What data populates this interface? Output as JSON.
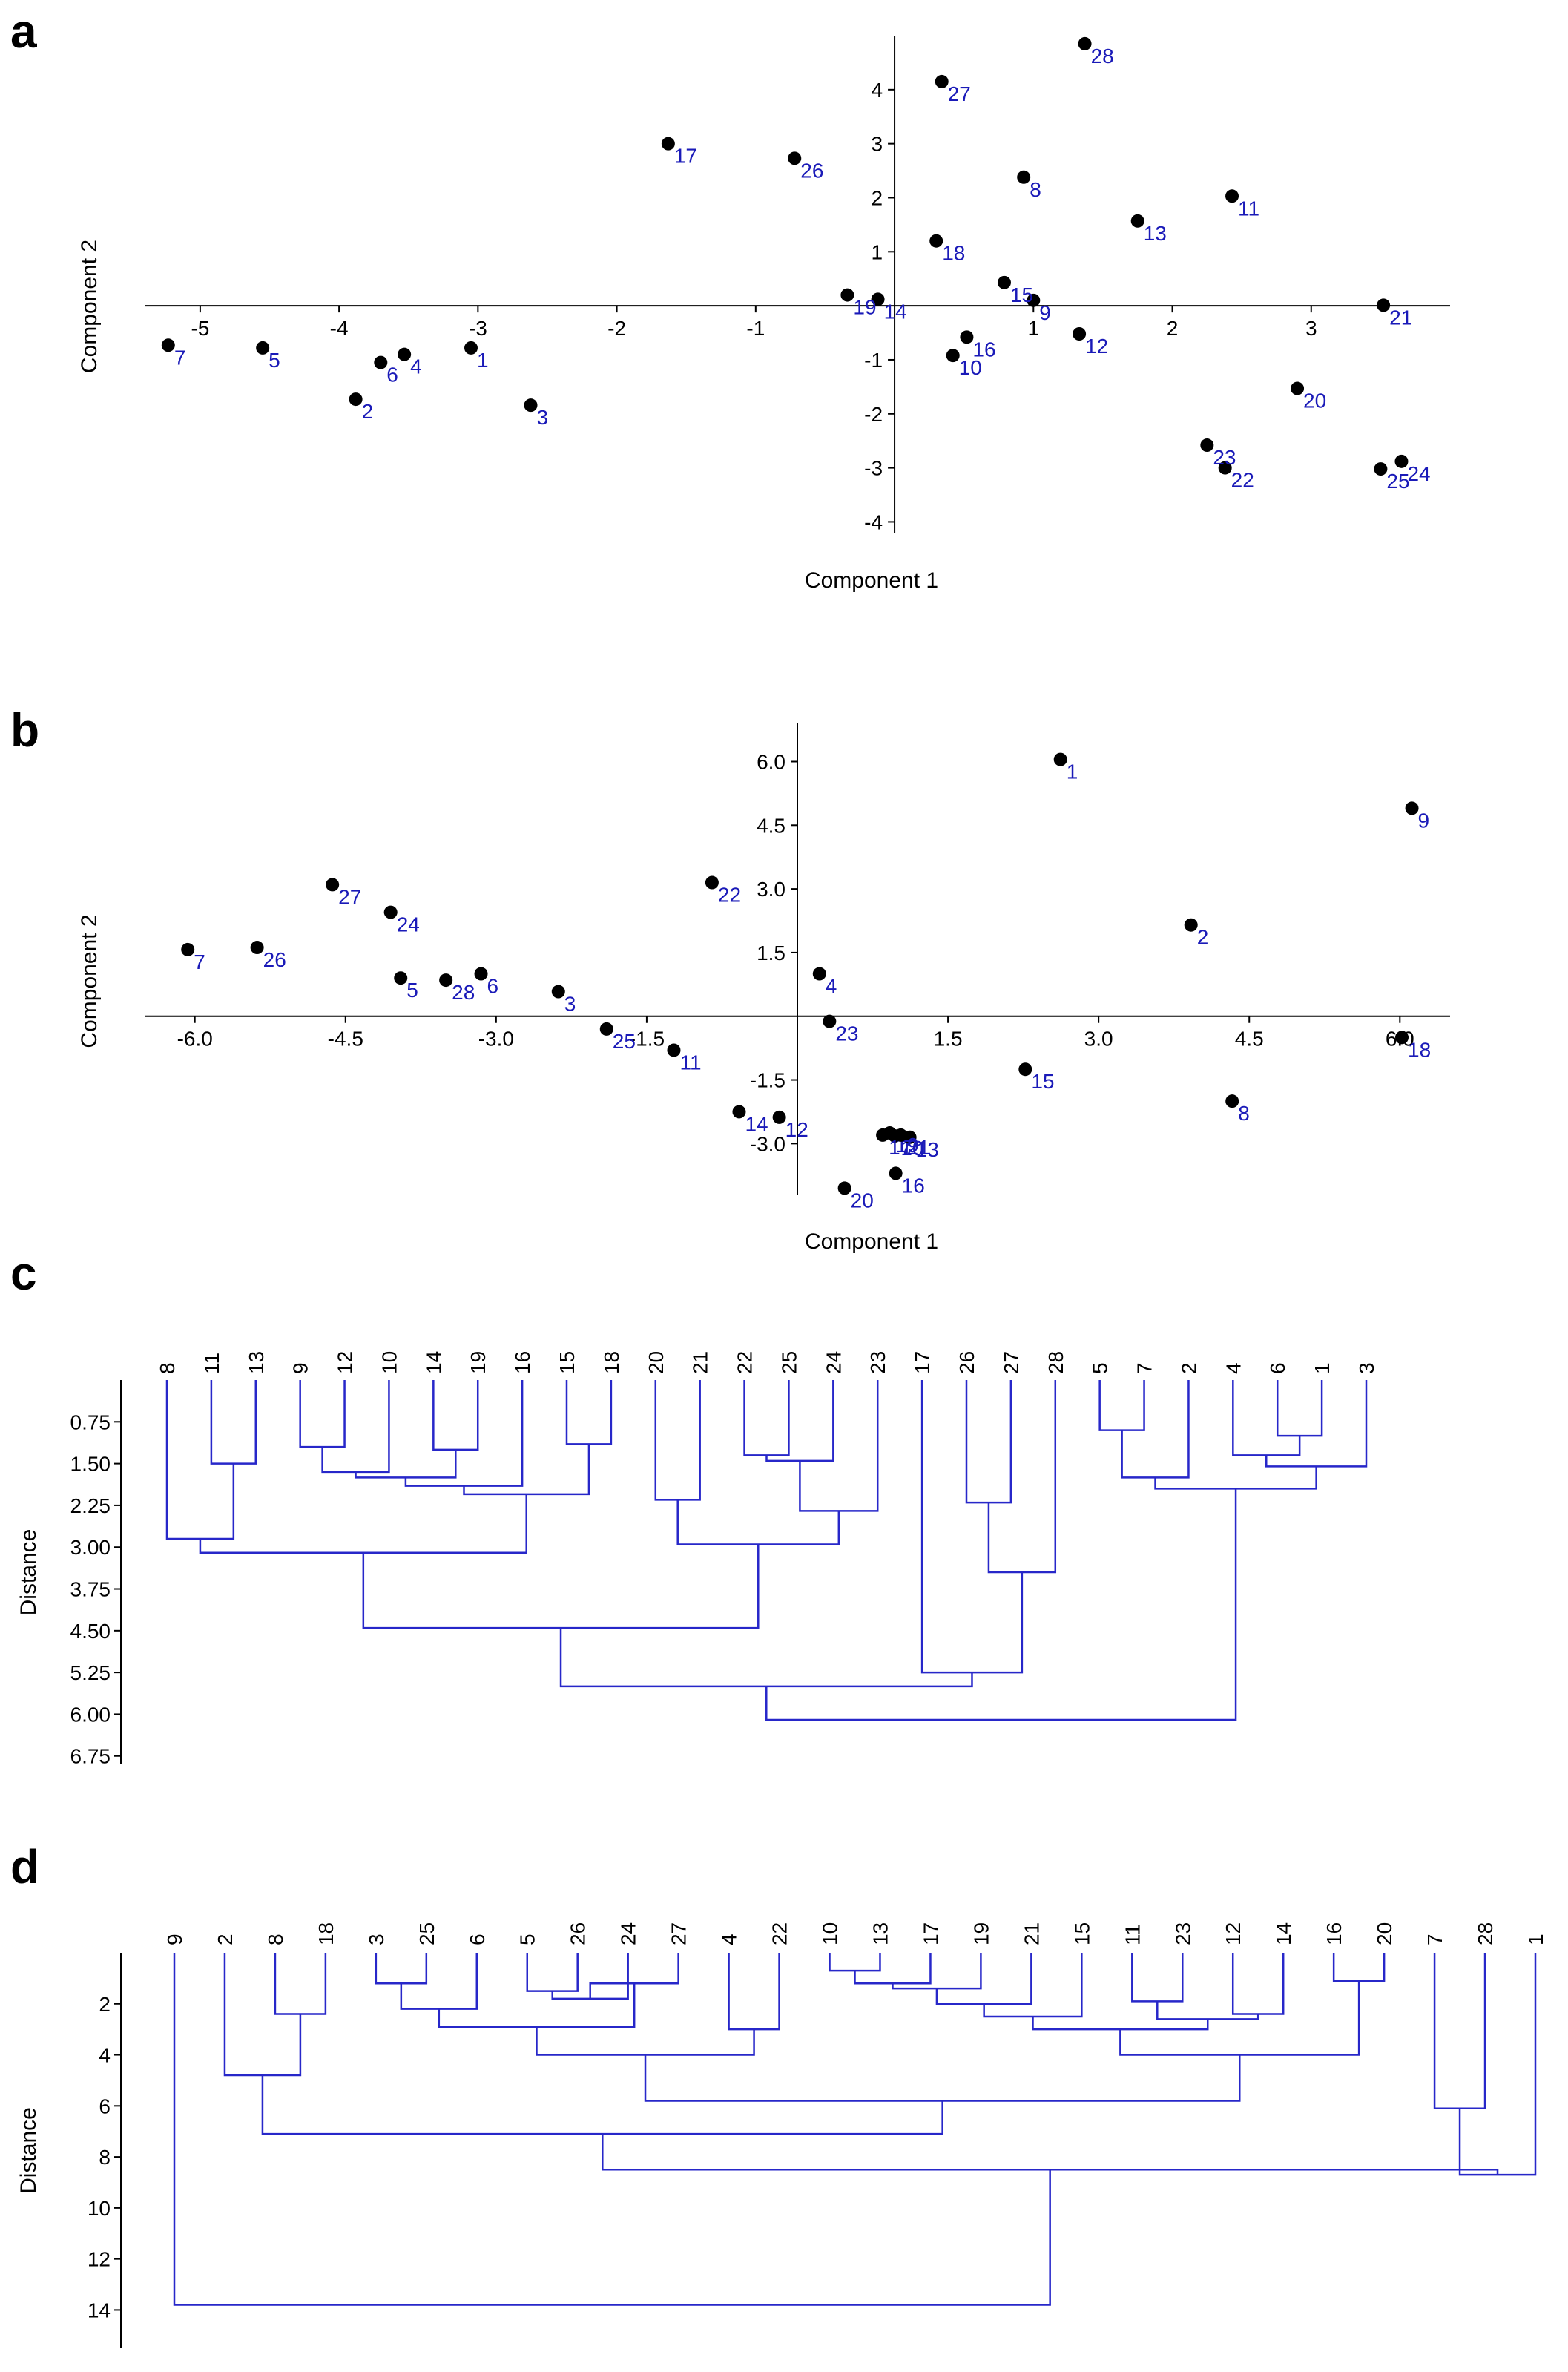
{
  "chart_data": [
    {
      "id": "a",
      "panel_label": "a",
      "type": "scatter",
      "xlabel": "Component 1",
      "ylabel": "Component 2",
      "xlim": [
        -5.4,
        4.0
      ],
      "ylim": [
        -4.2,
        5.0
      ],
      "xticks": [
        -5,
        -4,
        -3,
        -2,
        -1,
        1,
        2,
        3
      ],
      "yticks": [
        -4,
        -3,
        -2,
        -1,
        1,
        2,
        3,
        4
      ],
      "tick_decimals": 0,
      "points": [
        {
          "label": "1",
          "x": -3.05,
          "y": -0.78
        },
        {
          "label": "2",
          "x": -3.88,
          "y": -1.73
        },
        {
          "label": "3",
          "x": -2.62,
          "y": -1.84
        },
        {
          "label": "4",
          "x": -3.53,
          "y": -0.9
        },
        {
          "label": "5",
          "x": -4.55,
          "y": -0.78
        },
        {
          "label": "6",
          "x": -3.7,
          "y": -1.05
        },
        {
          "label": "7",
          "x": -5.23,
          "y": -0.73
        },
        {
          "label": "8",
          "x": 0.93,
          "y": 2.38
        },
        {
          "label": "9",
          "x": 1.0,
          "y": 0.1
        },
        {
          "label": "10",
          "x": 0.42,
          "y": -0.92
        },
        {
          "label": "11",
          "x": 2.43,
          "y": 2.03
        },
        {
          "label": "12",
          "x": 1.33,
          "y": -0.52
        },
        {
          "label": "13",
          "x": 1.75,
          "y": 1.57
        },
        {
          "label": "14",
          "x": -0.12,
          "y": 0.12
        },
        {
          "label": "15",
          "x": 0.79,
          "y": 0.43
        },
        {
          "label": "16",
          "x": 0.52,
          "y": -0.58
        },
        {
          "label": "17",
          "x": -1.63,
          "y": 3.0
        },
        {
          "label": "18",
          "x": 0.3,
          "y": 1.2
        },
        {
          "label": "19",
          "x": -0.34,
          "y": 0.2
        },
        {
          "label": "20",
          "x": 2.9,
          "y": -1.53
        },
        {
          "label": "21",
          "x": 3.52,
          "y": 0.01
        },
        {
          "label": "22",
          "x": 2.38,
          "y": -3.0
        },
        {
          "label": "23",
          "x": 2.25,
          "y": -2.58
        },
        {
          "label": "24",
          "x": 3.65,
          "y": -2.88
        },
        {
          "label": "25",
          "x": 3.5,
          "y": -3.02
        },
        {
          "label": "26",
          "x": -0.72,
          "y": 2.73
        },
        {
          "label": "27",
          "x": 0.34,
          "y": 4.15
        },
        {
          "label": "28",
          "x": 1.37,
          "y": 4.85
        }
      ]
    },
    {
      "id": "b",
      "panel_label": "b",
      "type": "scatter",
      "xlabel": "Component 1",
      "ylabel": "Component 2",
      "xlim": [
        -6.5,
        6.5
      ],
      "ylim": [
        -4.2,
        6.9
      ],
      "xticks": [
        -6.0,
        -4.5,
        -3.0,
        -1.5,
        1.5,
        3.0,
        4.5,
        6.0
      ],
      "yticks": [
        -3.0,
        -1.5,
        1.5,
        3.0,
        4.5,
        6.0
      ],
      "tick_decimals": 1,
      "points": [
        {
          "label": "1",
          "x": 2.62,
          "y": 6.05
        },
        {
          "label": "2",
          "x": 3.92,
          "y": 2.15
        },
        {
          "label": "3",
          "x": -2.38,
          "y": 0.58
        },
        {
          "label": "4",
          "x": 0.22,
          "y": 1.0
        },
        {
          "label": "5",
          "x": -3.95,
          "y": 0.9
        },
        {
          "label": "6",
          "x": -3.15,
          "y": 1.0
        },
        {
          "label": "7",
          "x": -6.07,
          "y": 1.57
        },
        {
          "label": "8",
          "x": 4.33,
          "y": -2.0
        },
        {
          "label": "9",
          "x": 6.12,
          "y": 4.9
        },
        {
          "label": "10",
          "x": 0.97,
          "y": -2.82
        },
        {
          "label": "11",
          "x": -1.23,
          "y": -0.8
        },
        {
          "label": "12",
          "x": -0.18,
          "y": -2.38
        },
        {
          "label": "13",
          "x": 1.12,
          "y": -2.85
        },
        {
          "label": "14",
          "x": -0.58,
          "y": -2.25
        },
        {
          "label": "15",
          "x": 2.27,
          "y": -1.25
        },
        {
          "label": "16",
          "x": 0.98,
          "y": -3.7
        },
        {
          "label": "17",
          "x": 0.85,
          "y": -2.8
        },
        {
          "label": "18",
          "x": 6.02,
          "y": -0.5
        },
        {
          "label": "19",
          "x": 0.92,
          "y": -2.75
        },
        {
          "label": "20",
          "x": 0.47,
          "y": -4.05
        },
        {
          "label": "21",
          "x": 1.03,
          "y": -2.8
        },
        {
          "label": "22",
          "x": -0.85,
          "y": 3.15
        },
        {
          "label": "23",
          "x": 0.32,
          "y": -0.12
        },
        {
          "label": "24",
          "x": -4.05,
          "y": 2.45
        },
        {
          "label": "25",
          "x": -1.9,
          "y": -0.3
        },
        {
          "label": "26",
          "x": -5.38,
          "y": 1.62
        },
        {
          "label": "27",
          "x": -4.63,
          "y": 3.1
        },
        {
          "label": "28",
          "x": -3.5,
          "y": 0.85
        }
      ]
    },
    {
      "id": "c",
      "panel_label": "c",
      "type": "dendrogram",
      "ylabel": "Distance",
      "ylim": [
        0.0,
        6.9
      ],
      "yticks": [
        0.75,
        1.5,
        2.25,
        3.0,
        3.75,
        4.5,
        5.25,
        6.0,
        6.75
      ],
      "tick_decimals": 2,
      "leaves": [
        "8",
        "11",
        "13",
        "9",
        "12",
        "10",
        "14",
        "19",
        "16",
        "15",
        "18",
        "20",
        "21",
        "22",
        "25",
        "24",
        "23",
        "17",
        "26",
        "27",
        "28",
        "5",
        "7",
        "2",
        "4",
        "6",
        "1",
        "3"
      ],
      "merges": [
        {
          "a": "11",
          "b": "13",
          "h": 1.5
        },
        {
          "a": "8",
          "b": 0,
          "h": 2.85
        },
        {
          "a": "9",
          "b": "12",
          "h": 1.2
        },
        {
          "a": 2,
          "b": "10",
          "h": 1.65
        },
        {
          "a": "14",
          "b": "19",
          "h": 1.25
        },
        {
          "a": 3,
          "b": 4,
          "h": 1.75
        },
        {
          "a": 5,
          "b": "16",
          "h": 1.9
        },
        {
          "a": "15",
          "b": "18",
          "h": 1.15
        },
        {
          "a": 6,
          "b": 7,
          "h": 2.05
        },
        {
          "a": 1,
          "b": 8,
          "h": 3.1
        },
        {
          "a": "20",
          "b": "21",
          "h": 2.15
        },
        {
          "a": "22",
          "b": "25",
          "h": 1.35
        },
        {
          "a": 11,
          "b": "24",
          "h": 1.45
        },
        {
          "a": 12,
          "b": "23",
          "h": 2.35
        },
        {
          "a": 10,
          "b": 13,
          "h": 2.95
        },
        {
          "a": 9,
          "b": 14,
          "h": 4.45
        },
        {
          "a": "26",
          "b": "27",
          "h": 2.2
        },
        {
          "a": 16,
          "b": "28",
          "h": 3.45
        },
        {
          "a": "17",
          "b": 17,
          "h": 5.25
        },
        {
          "a": 15,
          "b": 18,
          "h": 5.5
        },
        {
          "a": "5",
          "b": "7",
          "h": 0.9
        },
        {
          "a": 20,
          "b": "2",
          "h": 1.75
        },
        {
          "a": "6",
          "b": "1",
          "h": 1.0
        },
        {
          "a": "4",
          "b": 22,
          "h": 1.35
        },
        {
          "a": 23,
          "b": "3",
          "h": 1.55
        },
        {
          "a": 21,
          "b": 24,
          "h": 1.95
        },
        {
          "a": 19,
          "b": 25,
          "h": 6.1
        }
      ]
    },
    {
      "id": "d",
      "panel_label": "d",
      "type": "dendrogram",
      "ylabel": "Distance",
      "ylim": [
        0.0,
        15.5
      ],
      "yticks": [
        2,
        4,
        6,
        8,
        10,
        12,
        14
      ],
      "tick_decimals": 0,
      "leaves": [
        "9",
        "2",
        "8",
        "18",
        "3",
        "25",
        "6",
        "5",
        "26",
        "24",
        "27",
        "4",
        "22",
        "10",
        "13",
        "17",
        "19",
        "21",
        "15",
        "11",
        "23",
        "12",
        "14",
        "16",
        "20",
        "7",
        "28",
        "1"
      ],
      "merges": [
        {
          "a": "8",
          "b": "18",
          "h": 2.4
        },
        {
          "a": "2",
          "b": 0,
          "h": 4.8
        },
        {
          "a": "3",
          "b": "25",
          "h": 1.2
        },
        {
          "a": 2,
          "b": "6",
          "h": 2.2
        },
        {
          "a": "5",
          "b": "26",
          "h": 1.5
        },
        {
          "a": 4,
          "b": "24",
          "h": 1.8
        },
        {
          "a": 5,
          "b": "27",
          "h": 1.2
        },
        {
          "a": 3,
          "b": 6,
          "h": 2.9
        },
        {
          "a": "4",
          "b": "22",
          "h": 3.0
        },
        {
          "a": 7,
          "b": 8,
          "h": 4.0
        },
        {
          "a": "10",
          "b": "13",
          "h": 0.7
        },
        {
          "a": 10,
          "b": "17",
          "h": 1.2
        },
        {
          "a": 11,
          "b": "19",
          "h": 1.4
        },
        {
          "a": 12,
          "b": "21",
          "h": 2.0
        },
        {
          "a": 13,
          "b": "15",
          "h": 2.5
        },
        {
          "a": "11",
          "b": "23",
          "h": 1.9
        },
        {
          "a": "12",
          "b": "14",
          "h": 2.4
        },
        {
          "a": 15,
          "b": 16,
          "h": 2.6
        },
        {
          "a": 14,
          "b": 17,
          "h": 3.0
        },
        {
          "a": "16",
          "b": "20",
          "h": 1.1
        },
        {
          "a": 18,
          "b": 19,
          "h": 4.0
        },
        {
          "a": 9,
          "b": 20,
          "h": 5.8
        },
        {
          "a": 1,
          "b": 21,
          "h": 7.1
        },
        {
          "a": "7",
          "b": "28",
          "h": 6.1
        },
        {
          "a": 23,
          "b": "1",
          "h": 8.7
        },
        {
          "a": 22,
          "b": 24,
          "h": 8.5
        },
        {
          "a": "9",
          "b": 25,
          "h": 13.8
        }
      ]
    }
  ]
}
